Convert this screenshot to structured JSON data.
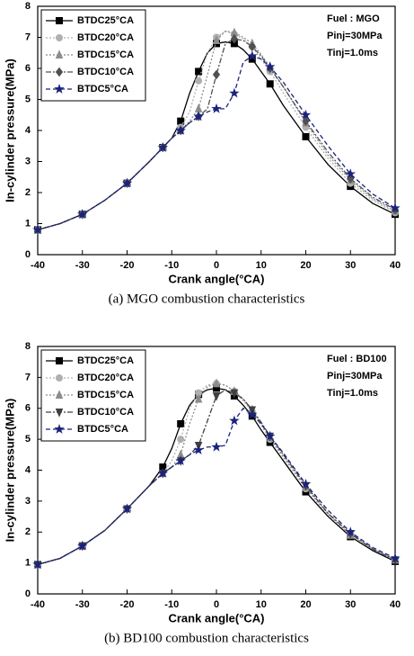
{
  "chart_data": [
    {
      "type": "line",
      "xlabel": "Crank angle(°CA)",
      "ylabel": "In-cylinder pressure(MPa)",
      "caption": "(a)  MGO  combustion  characteristics",
      "annotations": [
        "Fuel : MGO",
        "Pinj=30MPa",
        "Tinj=1.0ms"
      ],
      "xlim": [
        -40,
        40
      ],
      "xticks": [
        -40,
        -30,
        -20,
        -10,
        0,
        10,
        20,
        30,
        40
      ],
      "ylim": [
        0,
        8
      ],
      "yticks": [
        0,
        1,
        2,
        3,
        4,
        5,
        6,
        7,
        8
      ],
      "legend": "upper left",
      "x": [
        -40,
        -35,
        -30,
        -25,
        -20,
        -15,
        -12,
        -10,
        -8,
        -6,
        -4,
        -2,
        0,
        2,
        4,
        6,
        8,
        10,
        12,
        15,
        20,
        25,
        30,
        35,
        40
      ],
      "series": [
        {
          "name": "BTDC25°CA",
          "color": "#000000",
          "marker": "square",
          "dash": "solid",
          "values": [
            0.8,
            1.0,
            1.3,
            1.75,
            2.3,
            3.0,
            3.45,
            3.75,
            4.3,
            5.2,
            5.9,
            6.5,
            6.8,
            6.85,
            6.8,
            6.6,
            6.3,
            5.9,
            5.5,
            4.8,
            3.8,
            2.9,
            2.2,
            1.65,
            1.3
          ]
        },
        {
          "name": "BTDC20°CA",
          "color": "#b0b0b0",
          "marker": "circle",
          "dash": "dot",
          "values": [
            0.8,
            1.0,
            1.3,
            1.75,
            2.3,
            3.0,
            3.45,
            3.75,
            4.1,
            4.6,
            5.6,
            6.5,
            7.0,
            7.2,
            7.1,
            6.95,
            6.7,
            6.3,
            5.9,
            5.2,
            4.1,
            3.1,
            2.3,
            1.75,
            1.35
          ]
        },
        {
          "name": "BTDC15°CA",
          "color": "#8c8c8c",
          "marker": "triangle",
          "dash": "dot",
          "values": [
            0.8,
            1.0,
            1.3,
            1.75,
            2.3,
            3.0,
            3.45,
            3.75,
            4.0,
            4.3,
            4.7,
            5.8,
            6.9,
            7.2,
            7.15,
            7.0,
            6.8,
            6.45,
            6.05,
            5.4,
            4.25,
            3.2,
            2.4,
            1.8,
            1.4
          ]
        },
        {
          "name": "BTDC10°CA",
          "color": "#505050",
          "marker": "diamond",
          "dash": "dashdot",
          "values": [
            0.8,
            1.0,
            1.3,
            1.75,
            2.3,
            3.0,
            3.45,
            3.75,
            4.0,
            4.25,
            4.45,
            4.7,
            5.8,
            6.8,
            6.95,
            6.9,
            6.7,
            6.4,
            6.0,
            5.4,
            4.3,
            3.3,
            2.45,
            1.85,
            1.45
          ]
        },
        {
          "name": "BTDC5°CA",
          "color": "#1a237e",
          "marker": "star",
          "dash": "dash",
          "values": [
            0.8,
            1.0,
            1.3,
            1.75,
            2.3,
            3.0,
            3.45,
            3.75,
            4.0,
            4.25,
            4.45,
            4.6,
            4.7,
            4.7,
            5.2,
            6.2,
            6.4,
            6.3,
            6.05,
            5.55,
            4.5,
            3.5,
            2.6,
            1.95,
            1.5
          ]
        }
      ]
    },
    {
      "type": "line",
      "xlabel": "Crank angle(°CA)",
      "ylabel": "In-cylinder pressure(MPa)",
      "caption": "(b)  BD100  combustion  characteristics",
      "annotations": [
        "Fuel : BD100",
        "Pinj=30MPa",
        "Tinj=1.0ms"
      ],
      "xlim": [
        -40,
        40
      ],
      "xticks": [
        -40,
        -30,
        -20,
        -10,
        0,
        10,
        20,
        30,
        40
      ],
      "ylim": [
        0,
        8
      ],
      "yticks": [
        0,
        1,
        2,
        3,
        4,
        5,
        6,
        7,
        8
      ],
      "legend": "upper left",
      "x": [
        -40,
        -35,
        -30,
        -25,
        -20,
        -15,
        -12,
        -10,
        -8,
        -6,
        -4,
        -2,
        0,
        2,
        4,
        6,
        8,
        10,
        12,
        15,
        20,
        25,
        30,
        35,
        40
      ],
      "series": [
        {
          "name": "BTDC25°CA",
          "color": "#000000",
          "marker": "square",
          "dash": "solid",
          "values": [
            0.95,
            1.15,
            1.55,
            2.05,
            2.75,
            3.5,
            4.1,
            4.7,
            5.5,
            6.1,
            6.45,
            6.6,
            6.65,
            6.6,
            6.4,
            6.1,
            5.75,
            5.3,
            4.9,
            4.3,
            3.3,
            2.5,
            1.85,
            1.4,
            1.05
          ]
        },
        {
          "name": "BTDC20°CA",
          "color": "#b0b0b0",
          "marker": "circle",
          "dash": "dot",
          "values": [
            0.95,
            1.15,
            1.55,
            2.05,
            2.75,
            3.5,
            3.9,
            4.3,
            5.0,
            6.0,
            6.5,
            6.75,
            6.8,
            6.75,
            6.55,
            6.25,
            5.9,
            5.45,
            5.0,
            4.4,
            3.4,
            2.55,
            1.9,
            1.45,
            1.1
          ]
        },
        {
          "name": "BTDC15°CA",
          "color": "#8c8c8c",
          "marker": "triangle",
          "dash": "dot",
          "values": [
            0.95,
            1.15,
            1.55,
            2.05,
            2.75,
            3.5,
            3.9,
            4.1,
            4.5,
            5.5,
            6.3,
            6.7,
            6.8,
            6.75,
            6.55,
            6.3,
            5.95,
            5.5,
            5.05,
            4.45,
            3.45,
            2.6,
            1.9,
            1.45,
            1.1
          ]
        },
        {
          "name": "BTDC10°CA",
          "color": "#404040",
          "marker": "down-triangle",
          "dash": "dashdot",
          "values": [
            0.95,
            1.15,
            1.55,
            2.05,
            2.75,
            3.5,
            3.9,
            4.1,
            4.3,
            4.5,
            4.8,
            5.6,
            6.4,
            6.6,
            6.5,
            6.3,
            5.95,
            5.55,
            5.1,
            4.5,
            3.5,
            2.6,
            1.95,
            1.45,
            1.1
          ]
        },
        {
          "name": "BTDC5°CA",
          "color": "#1a237e",
          "marker": "star",
          "dash": "dash",
          "values": [
            0.95,
            1.15,
            1.55,
            2.05,
            2.75,
            3.5,
            3.9,
            4.1,
            4.3,
            4.5,
            4.65,
            4.75,
            4.75,
            4.8,
            5.6,
            6.0,
            5.8,
            5.5,
            5.1,
            4.55,
            3.55,
            2.7,
            2.0,
            1.5,
            1.15
          ]
        }
      ]
    }
  ]
}
